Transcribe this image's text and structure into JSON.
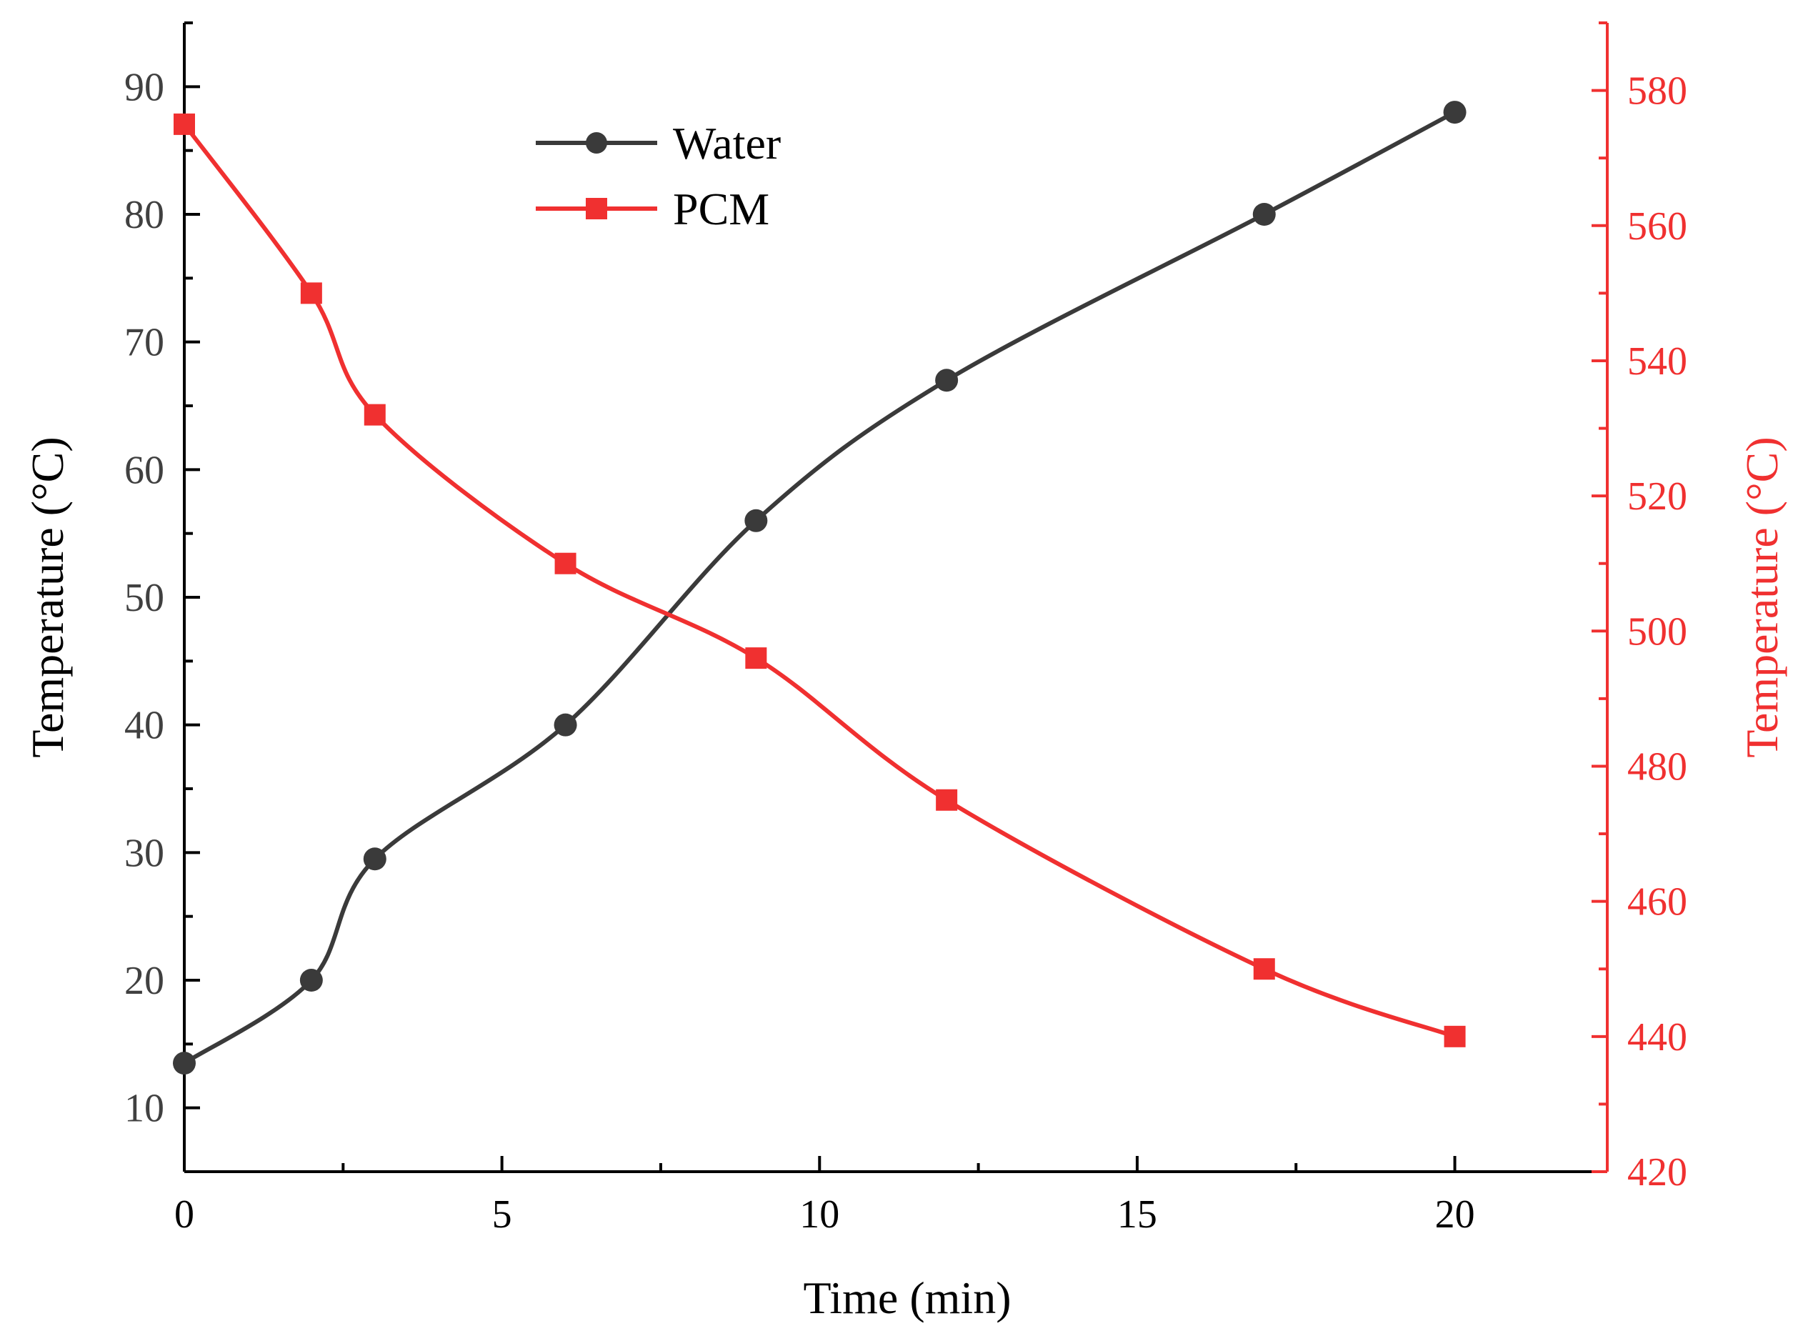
{
  "chart_data": {
    "type": "line",
    "title": "",
    "xlabel": "Time (min)",
    "ylabel": "Temperature (°C)",
    "y2label": "Temperature (°C)",
    "xlim": [
      0,
      22.4
    ],
    "ylim": [
      5,
      95
    ],
    "y2lim": [
      420,
      590
    ],
    "x_ticks": [
      "0",
      "5",
      "10",
      "15",
      "20"
    ],
    "y_ticks": [
      "10",
      "20",
      "30",
      "40",
      "50",
      "60",
      "70",
      "80",
      "90"
    ],
    "y2_ticks": [
      "420",
      "440",
      "460",
      "480",
      "500",
      "520",
      "540",
      "560",
      "580"
    ],
    "grid": false,
    "legend_position": "top-center",
    "series": [
      {
        "name": "Water",
        "axis": "left",
        "color": "#3a3a3a",
        "marker": "circle",
        "x": [
          0,
          2,
          3,
          6,
          9,
          12,
          17,
          20
        ],
        "values": [
          13.5,
          20,
          29.5,
          40,
          56,
          67,
          80,
          88
        ]
      },
      {
        "name": "PCM",
        "axis": "right",
        "color": "#f03030",
        "marker": "square",
        "x": [
          0,
          2,
          3,
          6,
          9,
          12,
          17,
          20
        ],
        "values": [
          575,
          550,
          532,
          510,
          496,
          475,
          450,
          440
        ]
      }
    ]
  }
}
